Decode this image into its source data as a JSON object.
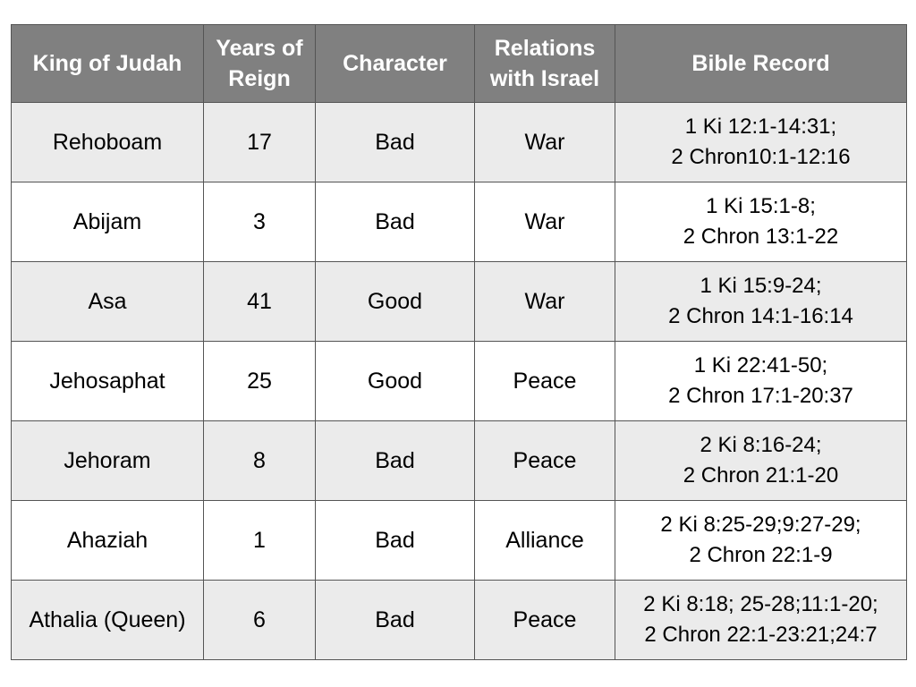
{
  "header": {
    "king": "King of Judah",
    "years_line1": "Years of",
    "years_line2": "Reign",
    "character": "Character",
    "relations_line1": "Relations",
    "relations_line2": "with Israel",
    "bible": "Bible Record"
  },
  "rows": [
    {
      "king": "Rehoboam",
      "years": "17",
      "character": "Bad",
      "relations": "War",
      "ref1": "1 Ki 12:1-14:31;",
      "ref2": "2 Chron10:1-12:16"
    },
    {
      "king": "Abijam",
      "years": "3",
      "character": "Bad",
      "relations": "War",
      "ref1": "1 Ki 15:1-8;",
      "ref2": "2 Chron 13:1-22"
    },
    {
      "king": "Asa",
      "years": "41",
      "character": "Good",
      "relations": "War",
      "ref1": "1 Ki 15:9-24;",
      "ref2": "2 Chron 14:1-16:14"
    },
    {
      "king": "Jehosaphat",
      "years": "25",
      "character": "Good",
      "relations": "Peace",
      "ref1": "1 Ki 22:41-50;",
      "ref2": "2 Chron 17:1-20:37"
    },
    {
      "king": "Jehoram",
      "years": "8",
      "character": "Bad",
      "relations": "Peace",
      "ref1": "2 Ki 8:16-24;",
      "ref2": "2 Chron 21:1-20"
    },
    {
      "king": "Ahaziah",
      "years": "1",
      "character": "Bad",
      "relations": "Alliance",
      "ref1": "2 Ki 8:25-29;9:27-29;",
      "ref2": "2 Chron 22:1-9"
    },
    {
      "king": "Athalia (Queen)",
      "years": "6",
      "character": "Bad",
      "relations": "Peace",
      "ref1": "2 Ki 8:18; 25-28;11:1-20;",
      "ref2": "2 Chron 22:1-23:21;24:7"
    }
  ],
  "colors": {
    "header_bg": "#808080",
    "header_text": "#ffffff",
    "alt_row_bg": "#ebebeb",
    "border": "#555555"
  }
}
